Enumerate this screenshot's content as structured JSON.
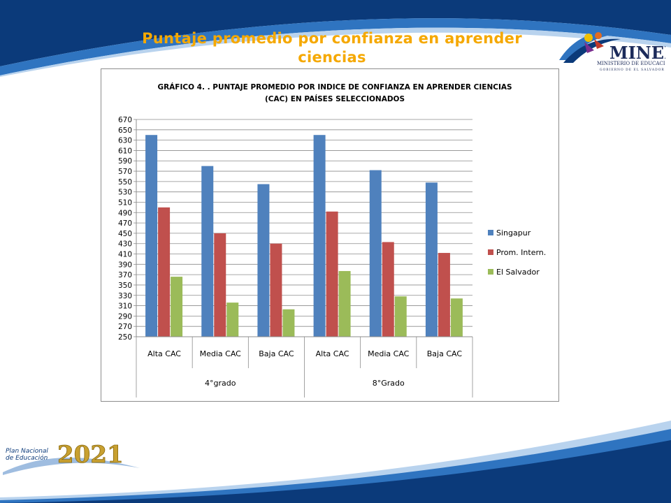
{
  "slide": {
    "title_line1": "Puntaje promedio por confianza en aprender",
    "title_line2": "ciencias"
  },
  "logo": {
    "mined_text": "MINED",
    "mined_subtitle": "MINISTERIO DE EDUCACIÓN",
    "mined_tagline": "GOBIERNO DE EL SALVADOR",
    "plan_line1": "Plan Nacional",
    "plan_line2": "de Educación",
    "plan_year": "2021"
  },
  "colors": {
    "banner_dark": "#0b3a7a",
    "banner_light": "#2f74c0",
    "title": "#f5a800"
  },
  "chart_data": {
    "type": "bar",
    "title_line1": "GRÁFICO 4. . PUNTAJE PROMEDIO POR INDICE DE CONFIANZA EN APRENDER CIENCIAS",
    "title_line2": "(CAC) EN PAÍSES SELECCIONADOS",
    "categories": [
      "Alta CAC",
      "Media CAC",
      "Baja CAC",
      "Alta CAC",
      "Media CAC",
      "Baja CAC"
    ],
    "groups": [
      {
        "label": "4°grado",
        "span": 3
      },
      {
        "label": "8°Grado",
        "span": 3
      }
    ],
    "series": [
      {
        "name": "Singapur",
        "color": "#4f81bd",
        "values": [
          640,
          580,
          545,
          640,
          572,
          548
        ]
      },
      {
        "name": "Prom. Intern.",
        "color": "#c0504d",
        "values": [
          500,
          450,
          430,
          492,
          433,
          412
        ]
      },
      {
        "name": "El Salvador",
        "color": "#9bbb59",
        "values": [
          366,
          316,
          303,
          377,
          328,
          324
        ]
      }
    ],
    "yticks": [
      250,
      270,
      290,
      310,
      330,
      350,
      370,
      390,
      410,
      430,
      450,
      470,
      490,
      510,
      530,
      550,
      570,
      590,
      610,
      630,
      650,
      670
    ],
    "ylim": [
      250,
      670
    ],
    "grid": true,
    "legend": "right"
  }
}
